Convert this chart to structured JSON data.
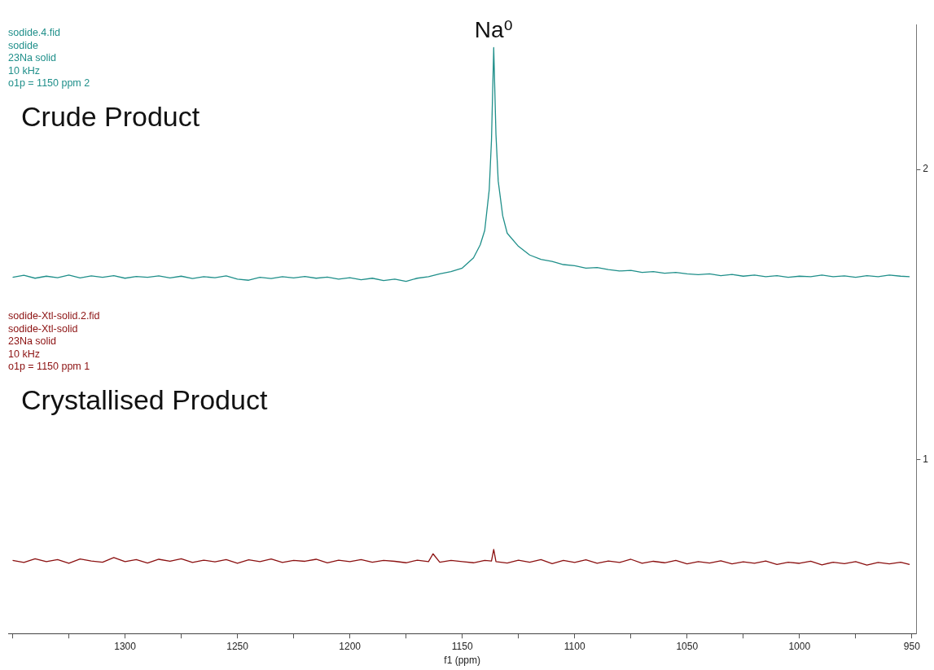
{
  "chart_data": {
    "type": "line",
    "xlabel": "f1 (ppm)",
    "xlim": [
      1352,
      948
    ],
    "xticks": [
      {
        "value": 1350,
        "label": null
      },
      {
        "value": 1325,
        "label": null
      },
      1300,
      {
        "value": 1275,
        "label": null
      },
      1250,
      {
        "value": 1225,
        "label": null
      },
      1200,
      {
        "value": 1175,
        "label": null
      },
      1150,
      {
        "value": 1125,
        "label": null
      },
      1100,
      {
        "value": 1075,
        "label": null
      },
      1050,
      {
        "value": 1025,
        "label": null
      },
      1000,
      {
        "value": 975,
        "label": null
      },
      950
    ],
    "ylim": [
      0.4,
      2.5
    ],
    "yticks": [
      1,
      2
    ],
    "grid": false,
    "legend": false,
    "marker": "none",
    "line_style": "solid",
    "series": [
      {
        "color": "#1f8f8a",
        "x": [
          1350,
          1345,
          1340,
          1335,
          1330,
          1325,
          1320,
          1315,
          1310,
          1305,
          1300,
          1295,
          1290,
          1285,
          1280,
          1275,
          1270,
          1265,
          1260,
          1255,
          1250,
          1245,
          1240,
          1235,
          1230,
          1225,
          1220,
          1215,
          1210,
          1205,
          1200,
          1195,
          1190,
          1185,
          1180,
          1175,
          1170,
          1165,
          1160,
          1155,
          1150,
          1145,
          1142,
          1140,
          1138,
          1137,
          1136,
          1135,
          1134,
          1132,
          1130,
          1125,
          1120,
          1115,
          1110,
          1105,
          1100,
          1095,
          1090,
          1085,
          1080,
          1075,
          1070,
          1065,
          1060,
          1055,
          1050,
          1045,
          1040,
          1035,
          1030,
          1025,
          1020,
          1015,
          1010,
          1005,
          1000,
          995,
          990,
          985,
          980,
          975,
          970,
          965,
          960,
          955,
          951
        ],
        "values": [
          1.628,
          1.635,
          1.625,
          1.632,
          1.627,
          1.636,
          1.626,
          1.633,
          1.628,
          1.634,
          1.625,
          1.631,
          1.628,
          1.633,
          1.626,
          1.632,
          1.624,
          1.63,
          1.627,
          1.633,
          1.622,
          1.618,
          1.628,
          1.624,
          1.63,
          1.626,
          1.631,
          1.625,
          1.629,
          1.622,
          1.627,
          1.62,
          1.625,
          1.617,
          1.622,
          1.614,
          1.625,
          1.63,
          1.64,
          1.648,
          1.66,
          1.695,
          1.74,
          1.79,
          1.93,
          2.1,
          2.42,
          2.12,
          1.96,
          1.84,
          1.78,
          1.735,
          1.705,
          1.69,
          1.683,
          1.672,
          1.668,
          1.66,
          1.662,
          1.655,
          1.65,
          1.652,
          1.645,
          1.648,
          1.642,
          1.645,
          1.64,
          1.637,
          1.64,
          1.634,
          1.638,
          1.632,
          1.636,
          1.63,
          1.634,
          1.628,
          1.632,
          1.63,
          1.636,
          1.63,
          1.633,
          1.628,
          1.634,
          1.63,
          1.636,
          1.632,
          1.63
        ]
      },
      {
        "color": "#8b1010",
        "x": [
          1350,
          1345,
          1340,
          1335,
          1330,
          1325,
          1320,
          1315,
          1310,
          1305,
          1300,
          1295,
          1290,
          1285,
          1280,
          1275,
          1270,
          1265,
          1260,
          1255,
          1250,
          1245,
          1240,
          1235,
          1230,
          1225,
          1220,
          1215,
          1210,
          1205,
          1200,
          1195,
          1190,
          1185,
          1180,
          1175,
          1170,
          1165,
          1163,
          1160,
          1155,
          1150,
          1145,
          1140,
          1137,
          1136,
          1135,
          1130,
          1125,
          1120,
          1115,
          1110,
          1105,
          1100,
          1095,
          1090,
          1085,
          1080,
          1075,
          1070,
          1065,
          1060,
          1055,
          1050,
          1045,
          1040,
          1035,
          1030,
          1025,
          1020,
          1015,
          1010,
          1005,
          1000,
          995,
          990,
          985,
          980,
          975,
          970,
          965,
          960,
          955,
          951
        ],
        "values": [
          0.652,
          0.645,
          0.658,
          0.648,
          0.655,
          0.642,
          0.657,
          0.65,
          0.646,
          0.662,
          0.648,
          0.655,
          0.643,
          0.656,
          0.649,
          0.658,
          0.645,
          0.653,
          0.647,
          0.655,
          0.642,
          0.654,
          0.648,
          0.657,
          0.645,
          0.652,
          0.649,
          0.656,
          0.644,
          0.653,
          0.648,
          0.655,
          0.646,
          0.652,
          0.649,
          0.644,
          0.653,
          0.648,
          0.675,
          0.646,
          0.652,
          0.648,
          0.644,
          0.652,
          0.65,
          0.69,
          0.648,
          0.643,
          0.653,
          0.646,
          0.655,
          0.641,
          0.652,
          0.645,
          0.654,
          0.642,
          0.65,
          0.645,
          0.656,
          0.642,
          0.649,
          0.644,
          0.652,
          0.64,
          0.648,
          0.643,
          0.651,
          0.64,
          0.647,
          0.642,
          0.65,
          0.638,
          0.646,
          0.642,
          0.649,
          0.637,
          0.646,
          0.641,
          0.648,
          0.636,
          0.645,
          0.64,
          0.646,
          0.638
        ]
      }
    ],
    "annotations": [
      "sodide.4.fid\nsodide\n23Na solid\n10 kHz\no1p = 1150 ppm 2",
      "Crude Product",
      "sodide-Xtl-solid.2.fid\nsodide-Xtl-solid\n23Na solid\n10 kHz\no1p = 1150 ppm 1",
      "Crystallised Product",
      {
        "text": "Na⁰",
        "x": 1136,
        "y": 2.42
      }
    ]
  }
}
